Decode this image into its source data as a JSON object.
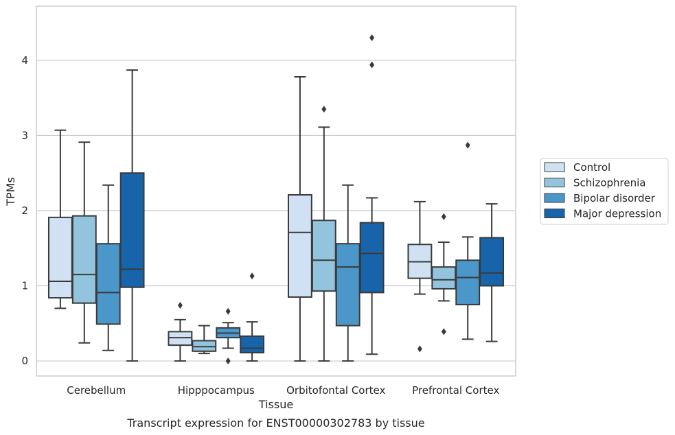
{
  "chart_data": {
    "type": "box",
    "caption": "Transcript expression for ENST00000302783 by tissue",
    "xlabel": "Tissue",
    "ylabel": "TPMs",
    "ylim": [
      -0.2,
      4.72
    ],
    "yticks": [
      0,
      1,
      2,
      3,
      4
    ],
    "grid": true,
    "legend_position": "right",
    "categories": [
      "Cerebellum",
      "Hipppocampus",
      "Orbitofontal Cortex",
      "Prefrontal Cortex"
    ],
    "series": [
      {
        "name": "Control",
        "color": "#cfe1f2",
        "boxes": [
          {
            "whislo": 0.7,
            "q1": 0.84,
            "med": 1.06,
            "q3": 1.91,
            "whishi": 3.07,
            "fliers": []
          },
          {
            "whislo": 0.0,
            "q1": 0.21,
            "med": 0.31,
            "q3": 0.39,
            "whishi": 0.55,
            "fliers": [
              0.74
            ]
          },
          {
            "whislo": 0.0,
            "q1": 0.85,
            "med": 1.71,
            "q3": 2.21,
            "whishi": 3.78,
            "fliers": []
          },
          {
            "whislo": 0.89,
            "q1": 1.1,
            "med": 1.32,
            "q3": 1.55,
            "whishi": 2.12,
            "fliers": [
              0.16
            ]
          }
        ]
      },
      {
        "name": "Schizophrenia",
        "color": "#93c4de",
        "boxes": [
          {
            "whislo": 0.24,
            "q1": 0.77,
            "med": 1.15,
            "q3": 1.93,
            "whishi": 2.91,
            "fliers": []
          },
          {
            "whislo": 0.1,
            "q1": 0.13,
            "med": 0.19,
            "q3": 0.27,
            "whishi": 0.47,
            "fliers": []
          },
          {
            "whislo": 0.0,
            "q1": 0.93,
            "med": 1.34,
            "q3": 1.87,
            "whishi": 3.11,
            "fliers": [
              3.35
            ]
          },
          {
            "whislo": 0.8,
            "q1": 0.96,
            "med": 1.08,
            "q3": 1.25,
            "whishi": 1.58,
            "fliers": [
              1.92,
              0.39
            ]
          }
        ]
      },
      {
        "name": "Bipolar disorder",
        "color": "#4b97c9",
        "boxes": [
          {
            "whislo": 0.14,
            "q1": 0.49,
            "med": 0.91,
            "q3": 1.56,
            "whishi": 2.34,
            "fliers": []
          },
          {
            "whislo": 0.17,
            "q1": 0.31,
            "med": 0.37,
            "q3": 0.44,
            "whishi": 0.51,
            "fliers": [
              0.66,
              0.0
            ]
          },
          {
            "whislo": 0.0,
            "q1": 0.47,
            "med": 1.25,
            "q3": 1.56,
            "whishi": 2.34,
            "fliers": []
          },
          {
            "whislo": 0.29,
            "q1": 0.75,
            "med": 1.11,
            "q3": 1.34,
            "whishi": 1.65,
            "fliers": [
              2.87
            ]
          }
        ]
      },
      {
        "name": "Major depression",
        "color": "#1764ab",
        "boxes": [
          {
            "whislo": 0.0,
            "q1": 0.98,
            "med": 1.22,
            "q3": 2.5,
            "whishi": 3.87,
            "fliers": []
          },
          {
            "whislo": 0.0,
            "q1": 0.11,
            "med": 0.17,
            "q3": 0.33,
            "whishi": 0.52,
            "fliers": [
              1.13
            ]
          },
          {
            "whislo": 0.09,
            "q1": 0.91,
            "med": 1.43,
            "q3": 1.84,
            "whishi": 2.17,
            "fliers": [
              4.3,
              3.94
            ]
          },
          {
            "whislo": 0.26,
            "q1": 1.0,
            "med": 1.17,
            "q3": 1.64,
            "whishi": 2.09,
            "fliers": []
          }
        ]
      }
    ]
  }
}
